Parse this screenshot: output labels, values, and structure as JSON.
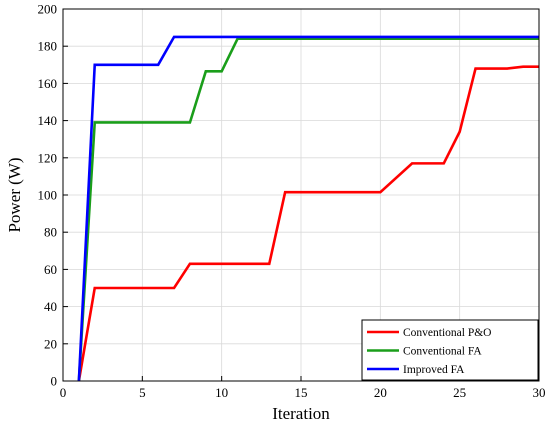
{
  "chart_data": {
    "type": "line",
    "xlabel": "Iteration",
    "ylabel": "Power (W)",
    "xlim": [
      0,
      30
    ],
    "ylim": [
      0,
      200
    ],
    "x_ticks": [
      0,
      5,
      10,
      15,
      20,
      25,
      30
    ],
    "y_ticks": [
      0,
      20,
      40,
      60,
      80,
      100,
      120,
      140,
      160,
      180,
      200
    ],
    "grid": true,
    "legend_position": "bottom-right",
    "series": [
      {
        "name": "Conventional P&O",
        "color": "#ff0000",
        "points": [
          [
            1,
            0
          ],
          [
            2,
            50
          ],
          [
            7,
            50
          ],
          [
            8,
            63
          ],
          [
            13,
            63
          ],
          [
            14,
            101.5
          ],
          [
            20,
            101.5
          ],
          [
            22,
            117
          ],
          [
            24,
            117
          ],
          [
            25,
            134
          ],
          [
            26,
            168
          ],
          [
            28,
            168
          ],
          [
            29,
            169
          ],
          [
            30,
            169
          ]
        ]
      },
      {
        "name": "Conventional FA",
        "color": "#1a9e1a",
        "points": [
          [
            1,
            0
          ],
          [
            2,
            139
          ],
          [
            8,
            139
          ],
          [
            9,
            166.5
          ],
          [
            10,
            166.5
          ],
          [
            11,
            184
          ],
          [
            30,
            184
          ]
        ]
      },
      {
        "name": "Improved FA",
        "color": "#0000ff",
        "points": [
          [
            1,
            0
          ],
          [
            2,
            170
          ],
          [
            6,
            170
          ],
          [
            7,
            185
          ],
          [
            30,
            185
          ]
        ]
      }
    ]
  }
}
